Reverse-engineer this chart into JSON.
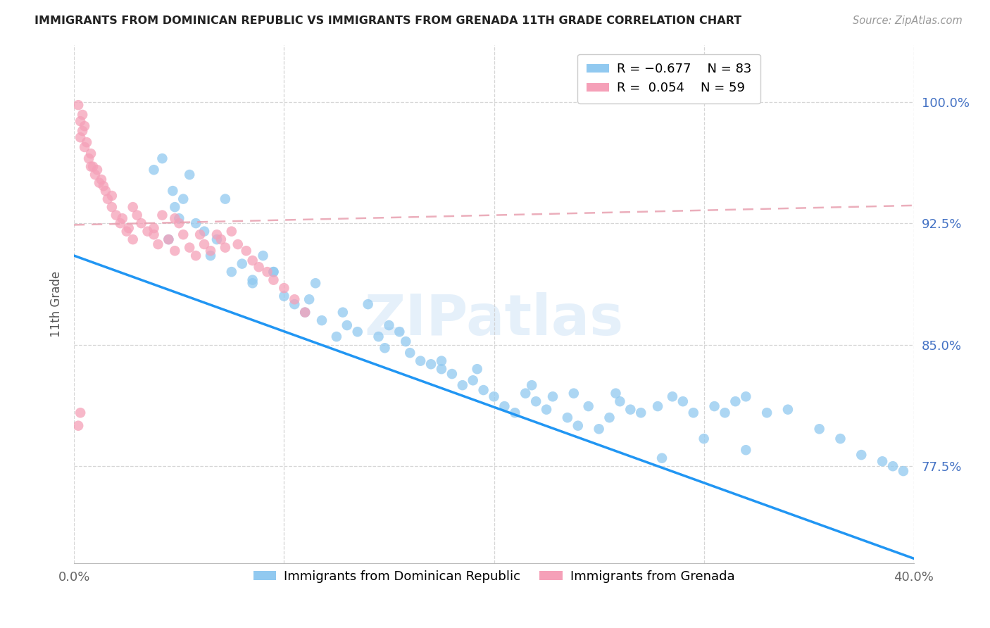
{
  "title": "IMMIGRANTS FROM DOMINICAN REPUBLIC VS IMMIGRANTS FROM GRENADA 11TH GRADE CORRELATION CHART",
  "source": "Source: ZipAtlas.com",
  "ylabel": "11th Grade",
  "yticks": [
    0.775,
    0.85,
    0.925,
    1.0
  ],
  "ytick_labels": [
    "77.5%",
    "85.0%",
    "92.5%",
    "100.0%"
  ],
  "xlim": [
    0.0,
    0.4
  ],
  "ylim": [
    0.715,
    1.035
  ],
  "color_blue": "#91C9F0",
  "color_pink": "#F5A0B8",
  "line_blue": "#2196F3",
  "line_pink_r": "#E88080",
  "line_pink_dash": "#E8A0B0",
  "watermark": "ZIPatlas",
  "blue_line_x0": 0.0,
  "blue_line_y0": 0.905,
  "blue_line_x1": 0.4,
  "blue_line_y1": 0.718,
  "pink_line_x0": 0.0,
  "pink_line_y0": 0.924,
  "pink_line_x1": 0.4,
  "pink_line_y1": 0.936,
  "blue_x": [
    0.038,
    0.047,
    0.042,
    0.055,
    0.048,
    0.052,
    0.058,
    0.062,
    0.045,
    0.05,
    0.068,
    0.065,
    0.072,
    0.08,
    0.075,
    0.085,
    0.09,
    0.095,
    0.085,
    0.1,
    0.105,
    0.095,
    0.11,
    0.112,
    0.118,
    0.115,
    0.125,
    0.13,
    0.135,
    0.128,
    0.14,
    0.145,
    0.148,
    0.155,
    0.15,
    0.16,
    0.165,
    0.158,
    0.17,
    0.175,
    0.18,
    0.185,
    0.175,
    0.19,
    0.195,
    0.192,
    0.2,
    0.205,
    0.21,
    0.215,
    0.22,
    0.218,
    0.225,
    0.228,
    0.235,
    0.24,
    0.245,
    0.238,
    0.25,
    0.255,
    0.26,
    0.265,
    0.258,
    0.27,
    0.278,
    0.285,
    0.295,
    0.29,
    0.305,
    0.31,
    0.315,
    0.32,
    0.33,
    0.34,
    0.355,
    0.365,
    0.375,
    0.385,
    0.39,
    0.395,
    0.28,
    0.3,
    0.32
  ],
  "blue_y": [
    0.958,
    0.945,
    0.965,
    0.955,
    0.935,
    0.94,
    0.925,
    0.92,
    0.915,
    0.928,
    0.915,
    0.905,
    0.94,
    0.9,
    0.895,
    0.89,
    0.905,
    0.895,
    0.888,
    0.88,
    0.875,
    0.895,
    0.87,
    0.878,
    0.865,
    0.888,
    0.855,
    0.862,
    0.858,
    0.87,
    0.875,
    0.855,
    0.848,
    0.858,
    0.862,
    0.845,
    0.84,
    0.852,
    0.838,
    0.835,
    0.832,
    0.825,
    0.84,
    0.828,
    0.822,
    0.835,
    0.818,
    0.812,
    0.808,
    0.82,
    0.815,
    0.825,
    0.81,
    0.818,
    0.805,
    0.8,
    0.812,
    0.82,
    0.798,
    0.805,
    0.815,
    0.81,
    0.82,
    0.808,
    0.812,
    0.818,
    0.808,
    0.815,
    0.812,
    0.808,
    0.815,
    0.818,
    0.808,
    0.81,
    0.798,
    0.792,
    0.782,
    0.778,
    0.775,
    0.772,
    0.78,
    0.792,
    0.785
  ],
  "pink_x": [
    0.003,
    0.004,
    0.002,
    0.005,
    0.006,
    0.004,
    0.007,
    0.003,
    0.008,
    0.005,
    0.01,
    0.009,
    0.012,
    0.008,
    0.011,
    0.015,
    0.013,
    0.016,
    0.018,
    0.014,
    0.02,
    0.022,
    0.018,
    0.025,
    0.023,
    0.028,
    0.026,
    0.03,
    0.032,
    0.028,
    0.035,
    0.038,
    0.04,
    0.042,
    0.038,
    0.045,
    0.048,
    0.05,
    0.052,
    0.048,
    0.055,
    0.058,
    0.06,
    0.062,
    0.065,
    0.068,
    0.07,
    0.072,
    0.075,
    0.078,
    0.082,
    0.085,
    0.088,
    0.092,
    0.095,
    0.1,
    0.105,
    0.11,
    0.002,
    0.003
  ],
  "pink_y": [
    0.988,
    0.992,
    0.998,
    0.985,
    0.975,
    0.982,
    0.965,
    0.978,
    0.96,
    0.972,
    0.955,
    0.96,
    0.95,
    0.968,
    0.958,
    0.945,
    0.952,
    0.94,
    0.935,
    0.948,
    0.93,
    0.925,
    0.942,
    0.92,
    0.928,
    0.915,
    0.922,
    0.93,
    0.925,
    0.935,
    0.92,
    0.918,
    0.912,
    0.93,
    0.922,
    0.915,
    0.908,
    0.925,
    0.918,
    0.928,
    0.91,
    0.905,
    0.918,
    0.912,
    0.908,
    0.918,
    0.915,
    0.91,
    0.92,
    0.912,
    0.908,
    0.902,
    0.898,
    0.895,
    0.89,
    0.885,
    0.878,
    0.87,
    0.8,
    0.808
  ]
}
